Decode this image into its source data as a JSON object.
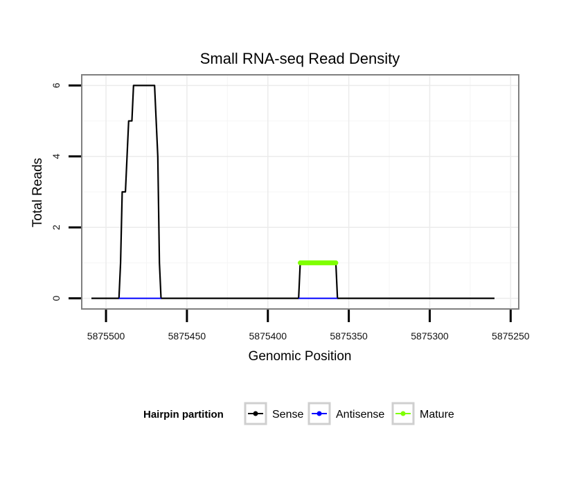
{
  "chart_data": {
    "type": "line",
    "title": "Small RNA-seq Read Density",
    "xlabel": "Genomic Position",
    "ylabel": "Total Reads",
    "x_reversed": true,
    "xlim": [
      5875515,
      5875245
    ],
    "ylim": [
      -0.3,
      6.3
    ],
    "x_ticks": [
      5875500,
      5875450,
      5875400,
      5875350,
      5875300,
      5875250
    ],
    "x_tick_labels": [
      "5875500",
      "5875450",
      "5875400",
      "5875350",
      "5875300",
      "5875250"
    ],
    "y_ticks": [
      0,
      2,
      4,
      6
    ],
    "y_tick_labels": [
      "0",
      "2",
      "4",
      "6"
    ],
    "grid": true,
    "legend": {
      "title": "Hairpin partition",
      "position": "bottom",
      "entries": [
        {
          "label": "Sense",
          "color": "#000000"
        },
        {
          "label": "Antisense",
          "color": "#0000ff"
        },
        {
          "label": "Mature",
          "color": "#7fff00"
        }
      ]
    },
    "series": [
      {
        "name": "Sense",
        "color": "#000000",
        "points": [
          [
            5875509,
            0
          ],
          [
            5875492,
            0
          ],
          [
            5875491,
            1
          ],
          [
            5875490,
            3
          ],
          [
            5875488,
            3
          ],
          [
            5875487,
            4
          ],
          [
            5875486,
            5
          ],
          [
            5875484,
            5
          ],
          [
            5875483,
            6
          ],
          [
            5875470,
            6
          ],
          [
            5875469,
            5
          ],
          [
            5875468,
            4
          ],
          [
            5875467,
            1
          ],
          [
            5875466,
            0
          ],
          [
            5875381,
            0
          ],
          [
            5875380,
            1
          ],
          [
            5875358,
            1
          ],
          [
            5875357,
            0
          ],
          [
            5875260,
            0
          ]
        ]
      },
      {
        "name": "Antisense",
        "color": "#0000ff",
        "points": [
          [
            5875492,
            0
          ],
          [
            5875466,
            0
          ],
          [
            5875381,
            0
          ],
          [
            5875357,
            0
          ]
        ]
      },
      {
        "name": "Mature",
        "color": "#7fff00",
        "points": [
          [
            5875380,
            1
          ],
          [
            5875358,
            1
          ]
        ]
      }
    ]
  }
}
